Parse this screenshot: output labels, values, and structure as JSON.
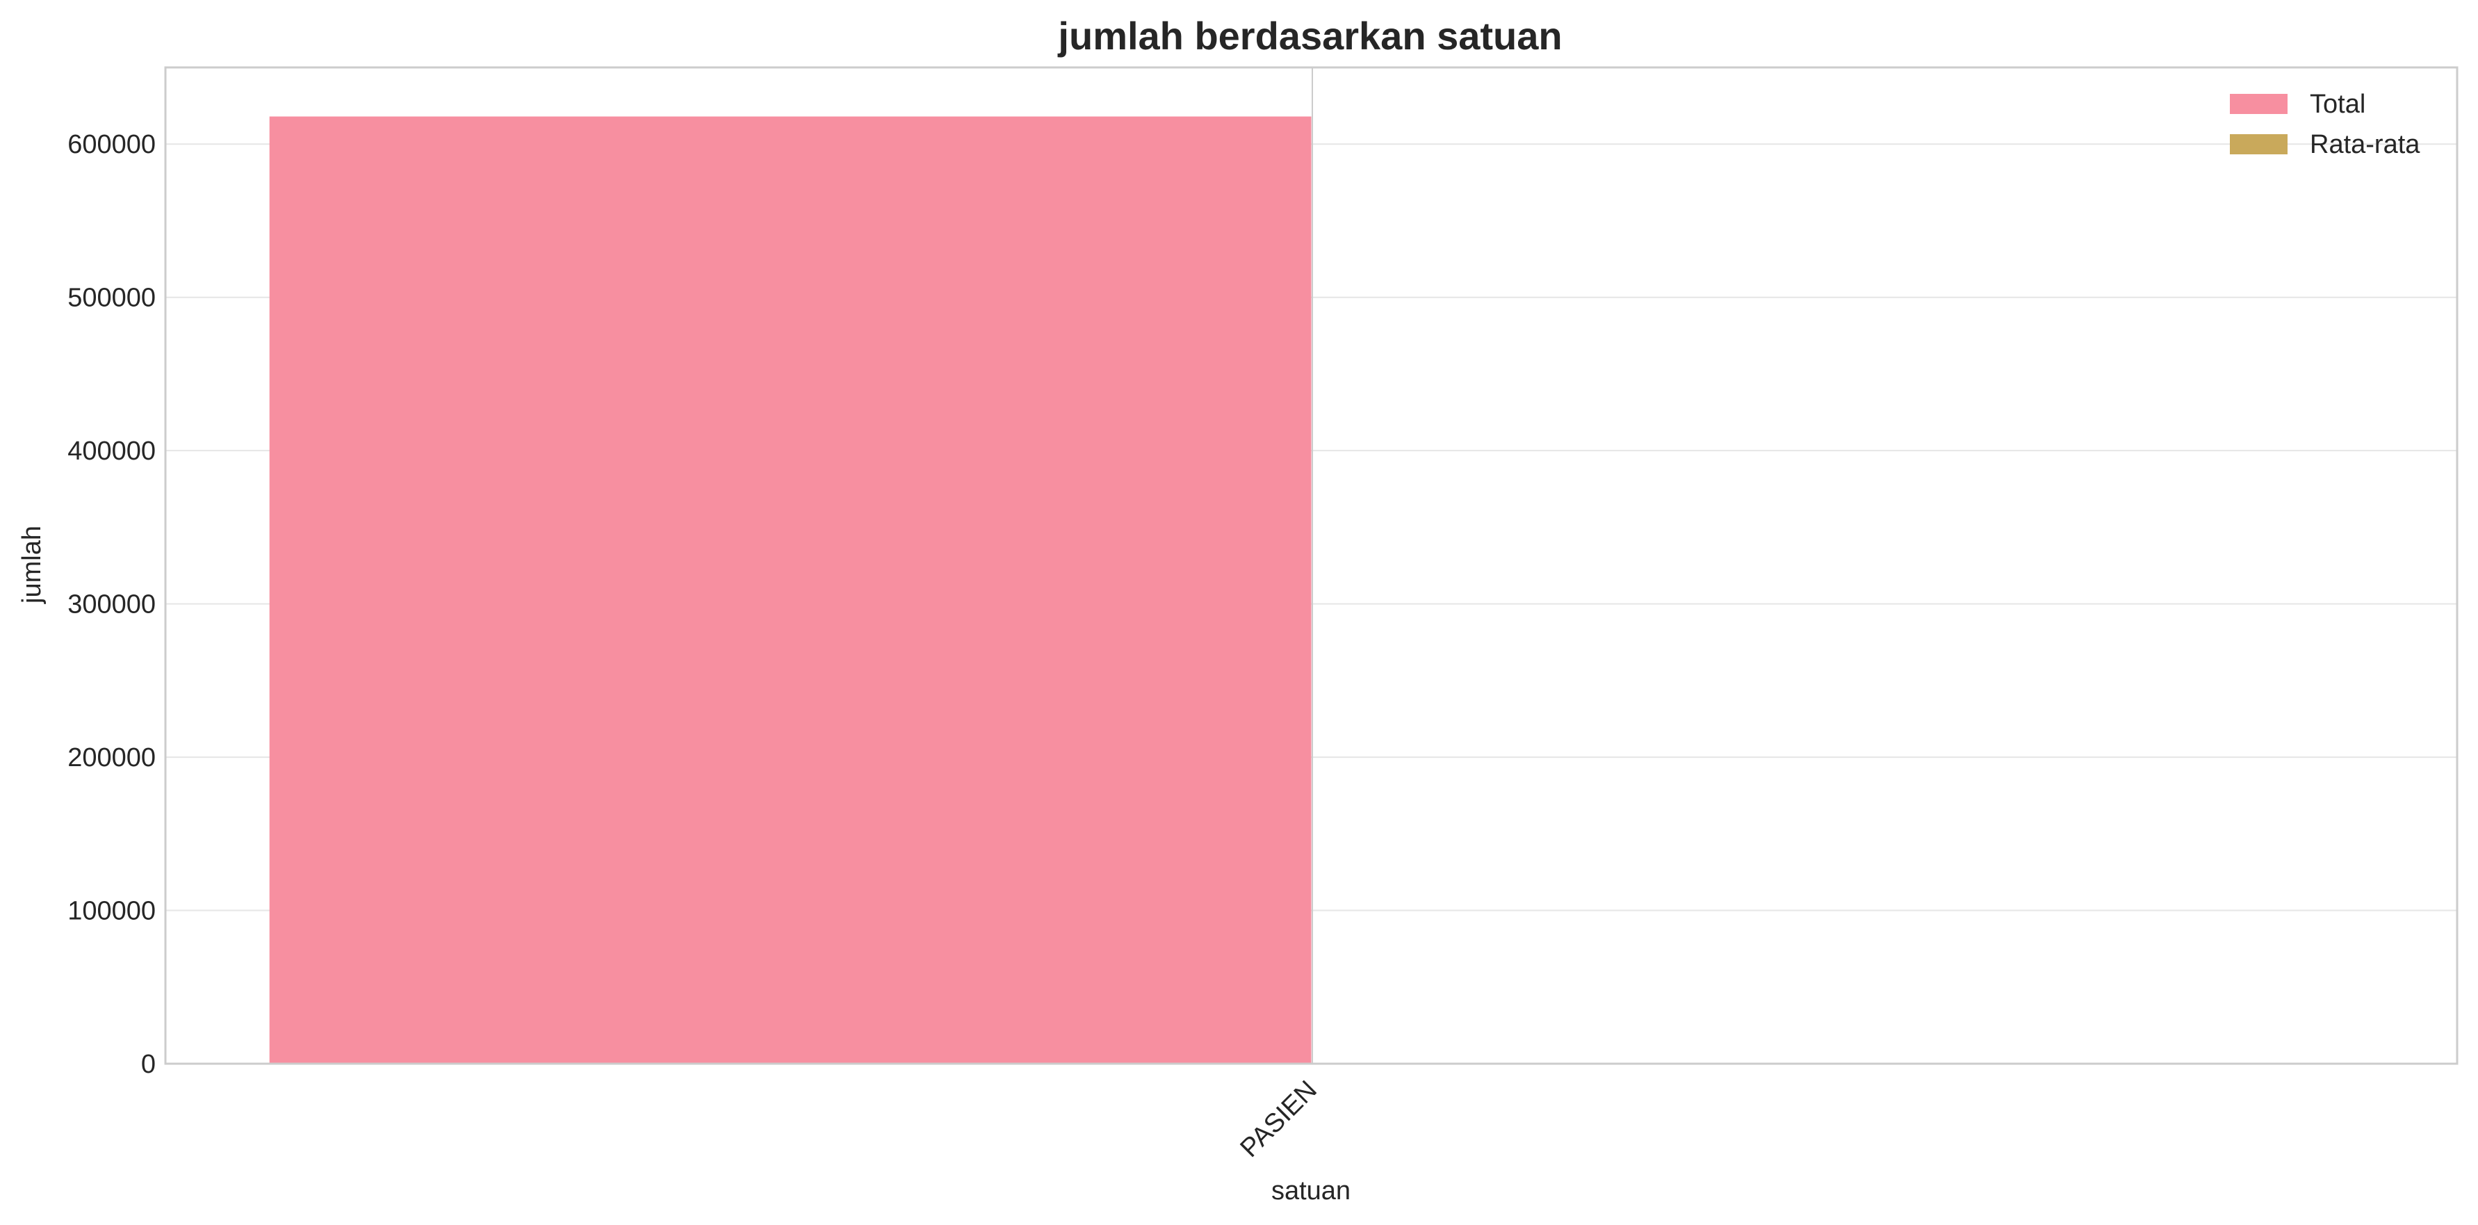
{
  "chart_data": {
    "type": "bar",
    "title": "jumlah berdasarkan satuan",
    "xlabel": "satuan",
    "ylabel": "jumlah",
    "categories": [
      "PASIEN"
    ],
    "series": [
      {
        "name": "Total",
        "values": [
          618000
        ],
        "color": "#f78fa0"
      },
      {
        "name": "Rata-rata",
        "values": [
          0
        ],
        "color": "#c9a95b"
      }
    ],
    "ylim": [
      0,
      650000
    ],
    "yticks": [
      0,
      100000,
      200000,
      300000,
      400000,
      500000,
      600000
    ],
    "ytick_labels": [
      "0",
      "100000",
      "200000",
      "300000",
      "400000",
      "500000",
      "600000"
    ],
    "grid": "horizontal",
    "legend_position": "top-right"
  }
}
